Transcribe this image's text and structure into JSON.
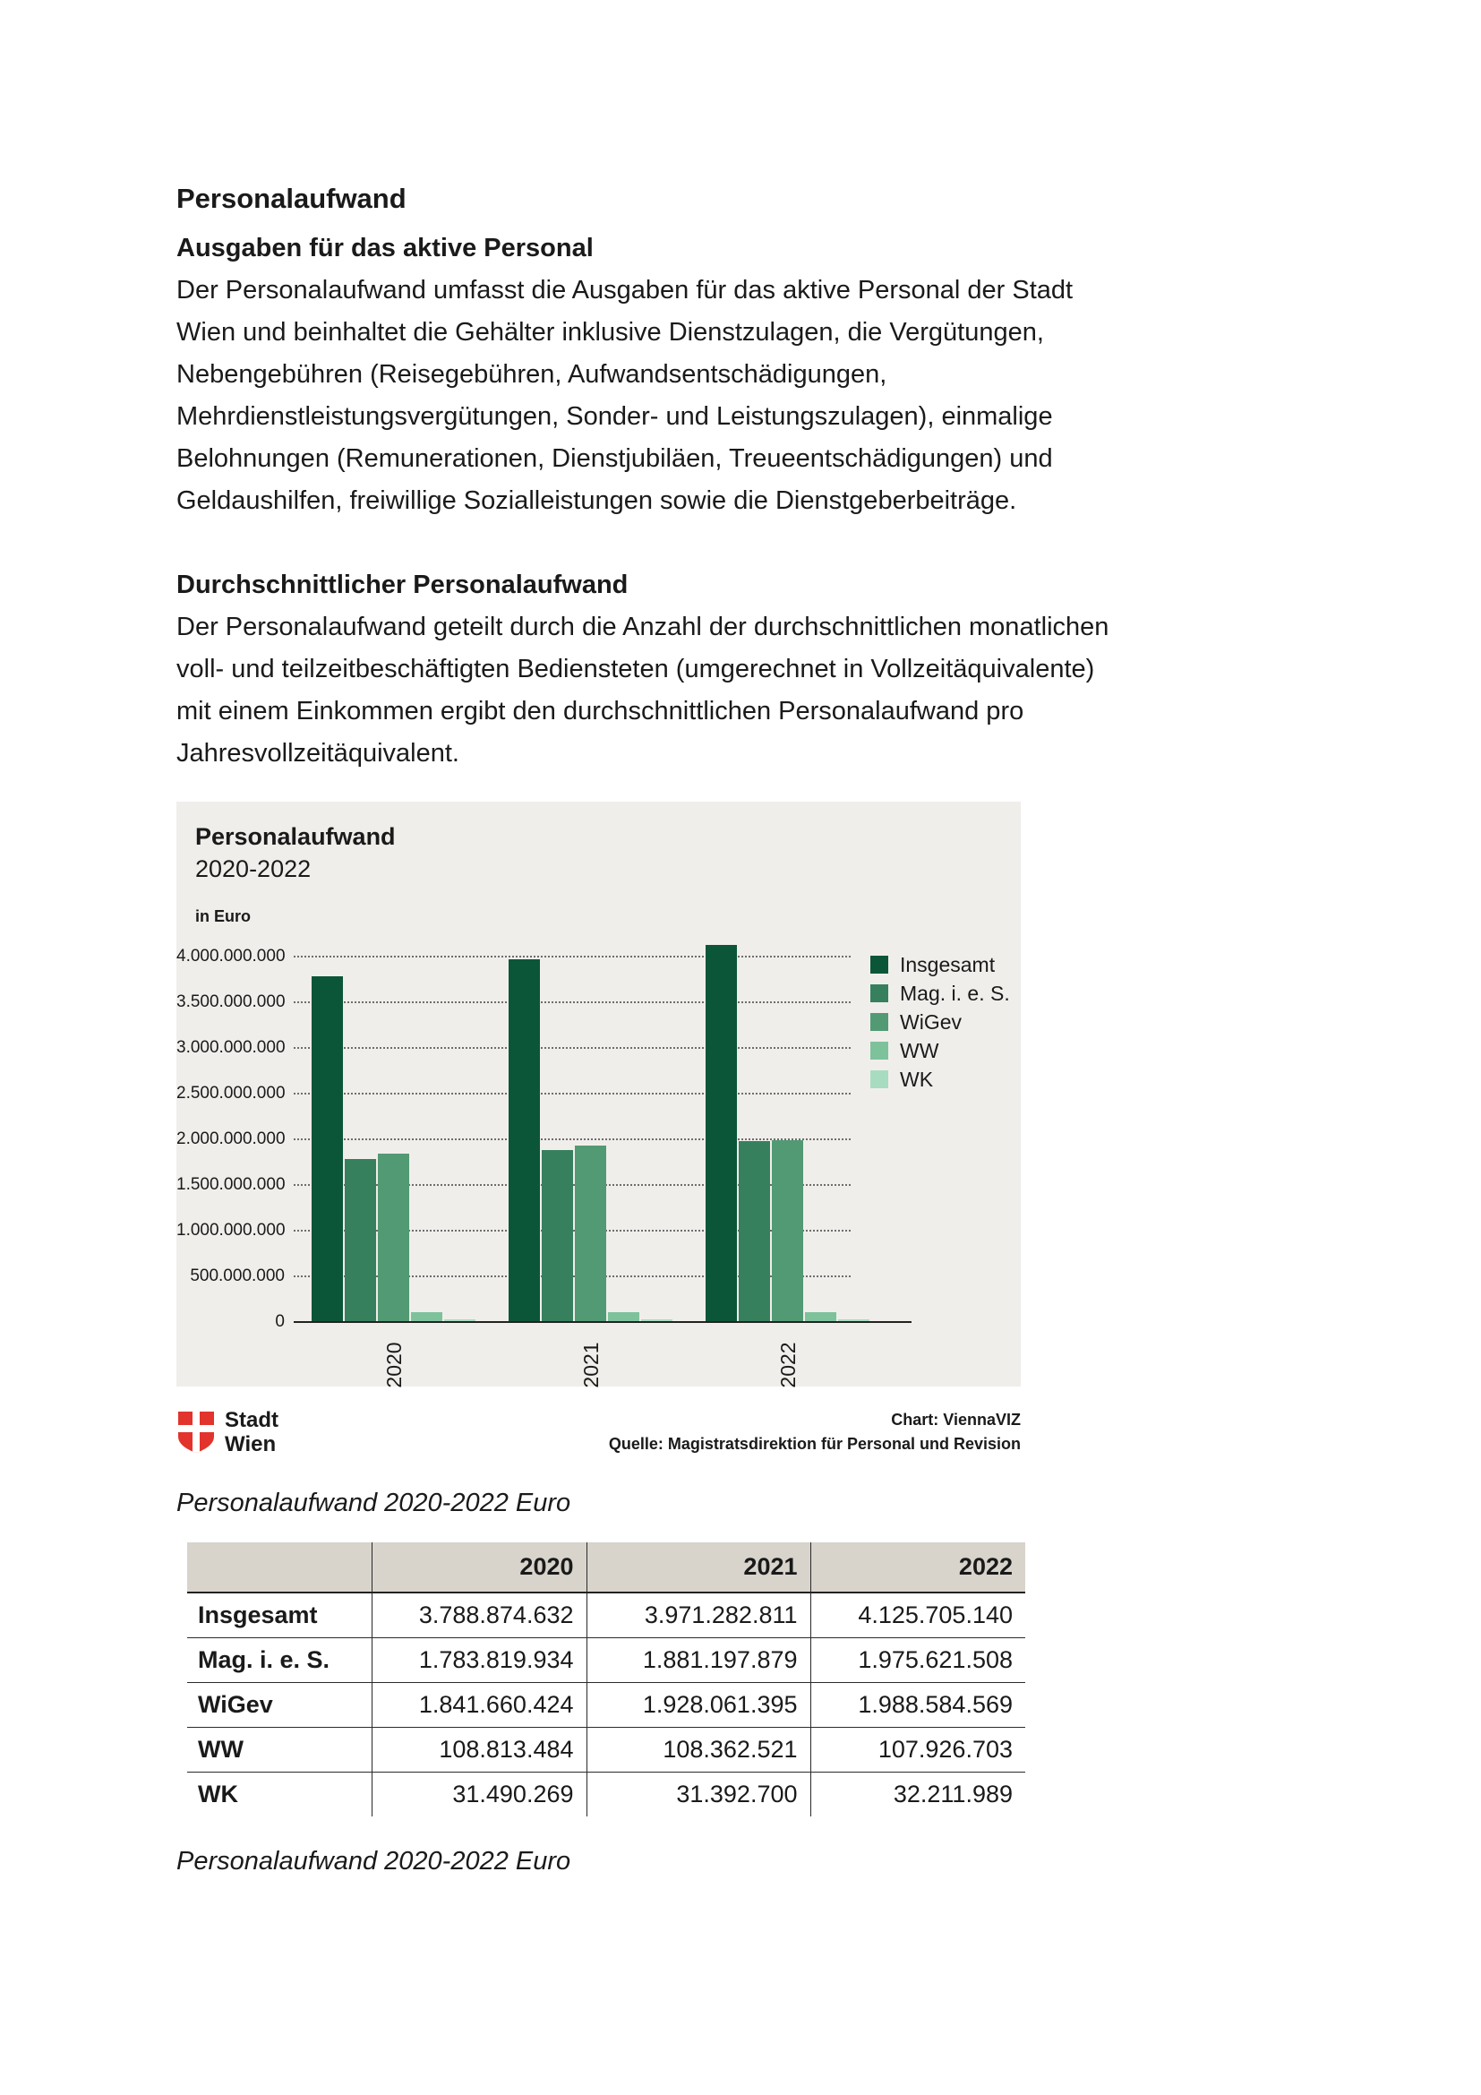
{
  "colors": {
    "wien_red": "#e2342d",
    "chart_background": "#f0eeeb",
    "table_header_background": "#d8d4cc",
    "series_insgesamt": "#0b5638",
    "series_mag": "#36805e",
    "series_wigev": "#529a73",
    "series_ww": "#7ec29b",
    "series_wk": "#a8dcc0"
  },
  "document": {
    "title": "Personalaufwand",
    "section1": {
      "heading": "Ausgaben für das aktive Personal",
      "body_lines": [
        "Der Personalaufwand umfasst die Ausgaben für das aktive Personal der Stadt",
        "Wien und beinhaltet die Gehälter inklusive Dienstzulagen, die Vergütungen,",
        "Nebengebühren (Reisegebühren, Aufwandsentschädigungen,",
        "Mehrdienstleistungsvergütungen, Sonder- und Leistungszulagen), einmalige",
        "Belohnungen (Remunerationen, Dienstjubiläen, Treueentschädigungen) und",
        "Geldaushilfen, freiwillige Sozialleistungen sowie die Dienstgeberbeiträge."
      ]
    },
    "section2": {
      "heading": "Durchschnittlicher Personalaufwand",
      "body_lines": [
        "Der Personalaufwand geteilt durch die Anzahl der durchschnittlichen monatlichen",
        "voll- und teilzeitbeschäftigten Bediensteten (umgerechnet in Vollzeitäquivalente)",
        "mit einem Einkommen ergibt den durchschnittlichen Personalaufwand pro",
        "Jahresvollzeitäquivalent."
      ]
    }
  },
  "chart_data": {
    "type": "bar",
    "title": "Personalaufwand",
    "subtitle": "2020-2022",
    "unit_label": "in Euro",
    "categories": [
      "2020",
      "2021",
      "2022"
    ],
    "series": [
      {
        "name": "Insgesamt",
        "color": "#0b5638",
        "values": [
          3788874632,
          3971282811,
          4125705140
        ]
      },
      {
        "name": "Mag. i. e. S.",
        "color": "#36805e",
        "values": [
          1783819934,
          1881197879,
          1975621508
        ]
      },
      {
        "name": "WiGev",
        "color": "#529a73",
        "values": [
          1841660424,
          1928061395,
          1988584569
        ]
      },
      {
        "name": "WW",
        "color": "#7ec29b",
        "values": [
          108813484,
          108362521,
          107926703
        ]
      },
      {
        "name": "WK",
        "color": "#a8dcc0",
        "values": [
          31490269,
          31392700,
          32211989
        ]
      }
    ],
    "ylim": [
      0,
      4200000000
    ],
    "grid": "horizontal-dotted",
    "legend_position": "right",
    "yticks": [
      {
        "value": 4000000000,
        "label": "4.000.000.000"
      },
      {
        "value": 3500000000,
        "label": "3.500.000.000"
      },
      {
        "value": 3000000000,
        "label": "3.000.000.000"
      },
      {
        "value": 2500000000,
        "label": "2.500.000.000"
      },
      {
        "value": 2000000000,
        "label": "2.000.000.000"
      },
      {
        "value": 1500000000,
        "label": "1.500.000.000"
      },
      {
        "value": 1000000000,
        "label": "1.000.000.000"
      },
      {
        "value": 500000000,
        "label": "500.000.000"
      },
      {
        "value": 0,
        "label": "0"
      }
    ]
  },
  "chart_footer": {
    "logo_line1": "Stadt",
    "logo_line2": "Wien",
    "credit_line1": "Chart: ViennaVIZ",
    "credit_line2": "Quelle: Magistratsdirektion für Personal und Revision"
  },
  "table": {
    "caption_top": "Personalaufwand 2020-2022 Euro",
    "caption_bottom": "Personalaufwand 2020-2022 Euro",
    "columns": [
      "",
      "2020",
      "2021",
      "2022"
    ],
    "rows": [
      {
        "label": "Insgesamt",
        "values": [
          "3.788.874.632",
          "3.971.282.811",
          "4.125.705.140"
        ]
      },
      {
        "label": "Mag. i. e. S.",
        "values": [
          "1.783.819.934",
          "1.881.197.879",
          "1.975.621.508"
        ]
      },
      {
        "label": "WiGev",
        "values": [
          "1.841.660.424",
          "1.928.061.395",
          "1.988.584.569"
        ]
      },
      {
        "label": "WW",
        "values": [
          "108.813.484",
          "108.362.521",
          "107.926.703"
        ]
      },
      {
        "label": "WK",
        "values": [
          "31.490.269",
          "31.392.700",
          "32.211.989"
        ]
      }
    ]
  }
}
